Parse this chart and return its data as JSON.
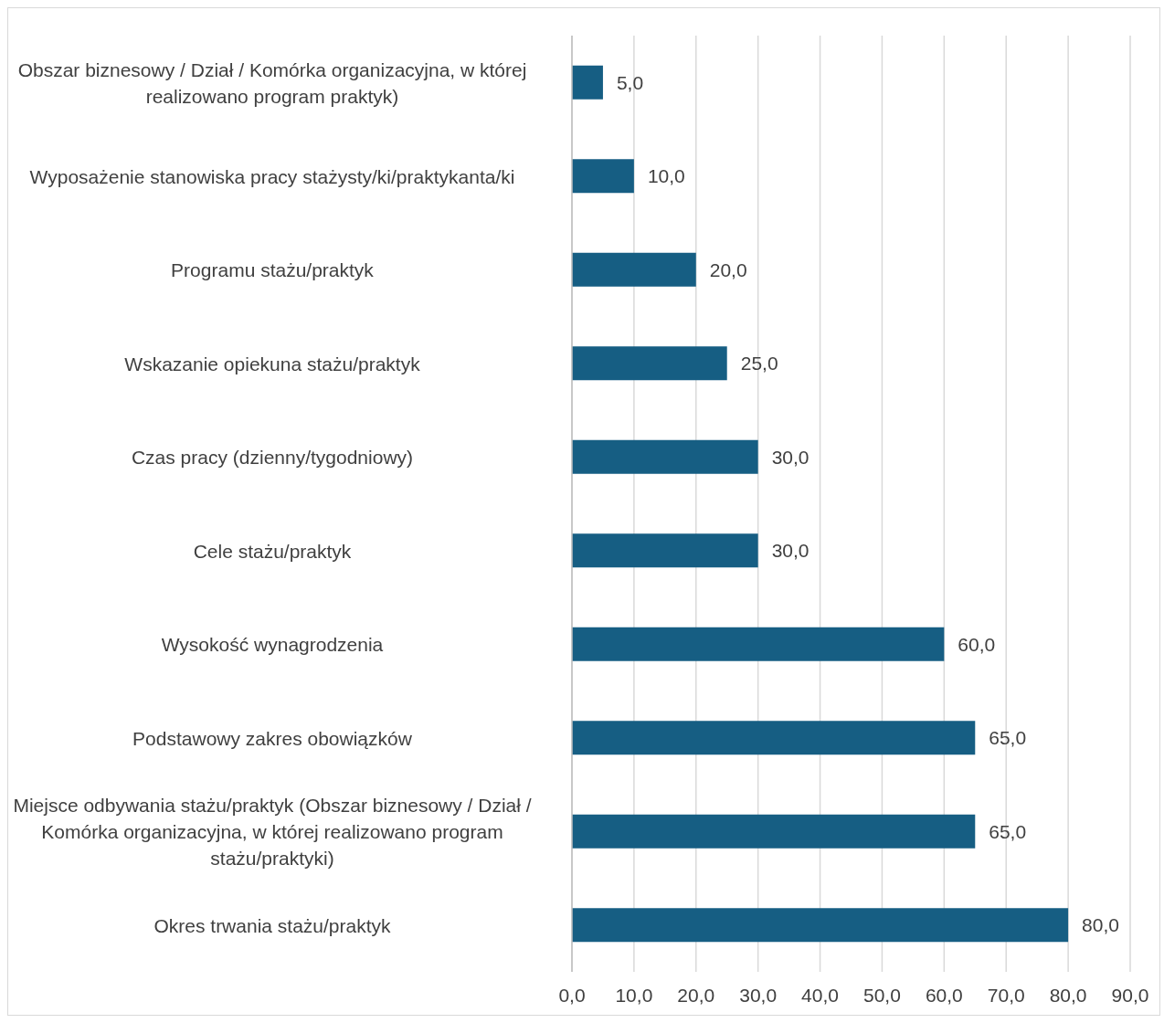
{
  "chart_data": {
    "type": "bar",
    "orientation": "horizontal",
    "categories": [
      "Obszar biznesowy / Dział / Komórka organizacyjna, w której realizowano program praktyk)",
      "Wyposażenie stanowiska pracy stażysty/ki/praktykanta/ki",
      "Programu stażu/praktyk",
      "Wskazanie opiekuna stażu/praktyk",
      "Czas pracy (dzienny/tygodniowy)",
      "Cele stażu/praktyk",
      "Wysokość wynagrodzenia",
      "Podstawowy zakres obowiązków",
      "Miejsce odbywania stażu/praktyk (Obszar biznesowy / Dział / Komórka organizacyjna, w której realizowano program stażu/praktyki)",
      "Okres trwania stażu/praktyk"
    ],
    "values": [
      5,
      10,
      20,
      25,
      30,
      30,
      60,
      65,
      65,
      80
    ],
    "value_labels": [
      "5,0",
      "10,0",
      "20,0",
      "25,0",
      "30,0",
      "30,0",
      "60,0",
      "65,0",
      "65,0",
      "80,0"
    ],
    "color": "#165e83",
    "xlim": [
      0,
      90
    ],
    "xticks": [
      {
        "value": 0,
        "label": "0,0"
      },
      {
        "value": 10,
        "label": "10,0"
      },
      {
        "value": 20,
        "label": "20,0"
      },
      {
        "value": 30,
        "label": "30,0"
      },
      {
        "value": 40,
        "label": "40,0"
      },
      {
        "value": 50,
        "label": "50,0"
      },
      {
        "value": 60,
        "label": "60,0"
      },
      {
        "value": 70,
        "label": "70,0"
      },
      {
        "value": 80,
        "label": "80,0"
      },
      {
        "value": 90,
        "label": "90,0"
      }
    ],
    "grid": "x"
  }
}
